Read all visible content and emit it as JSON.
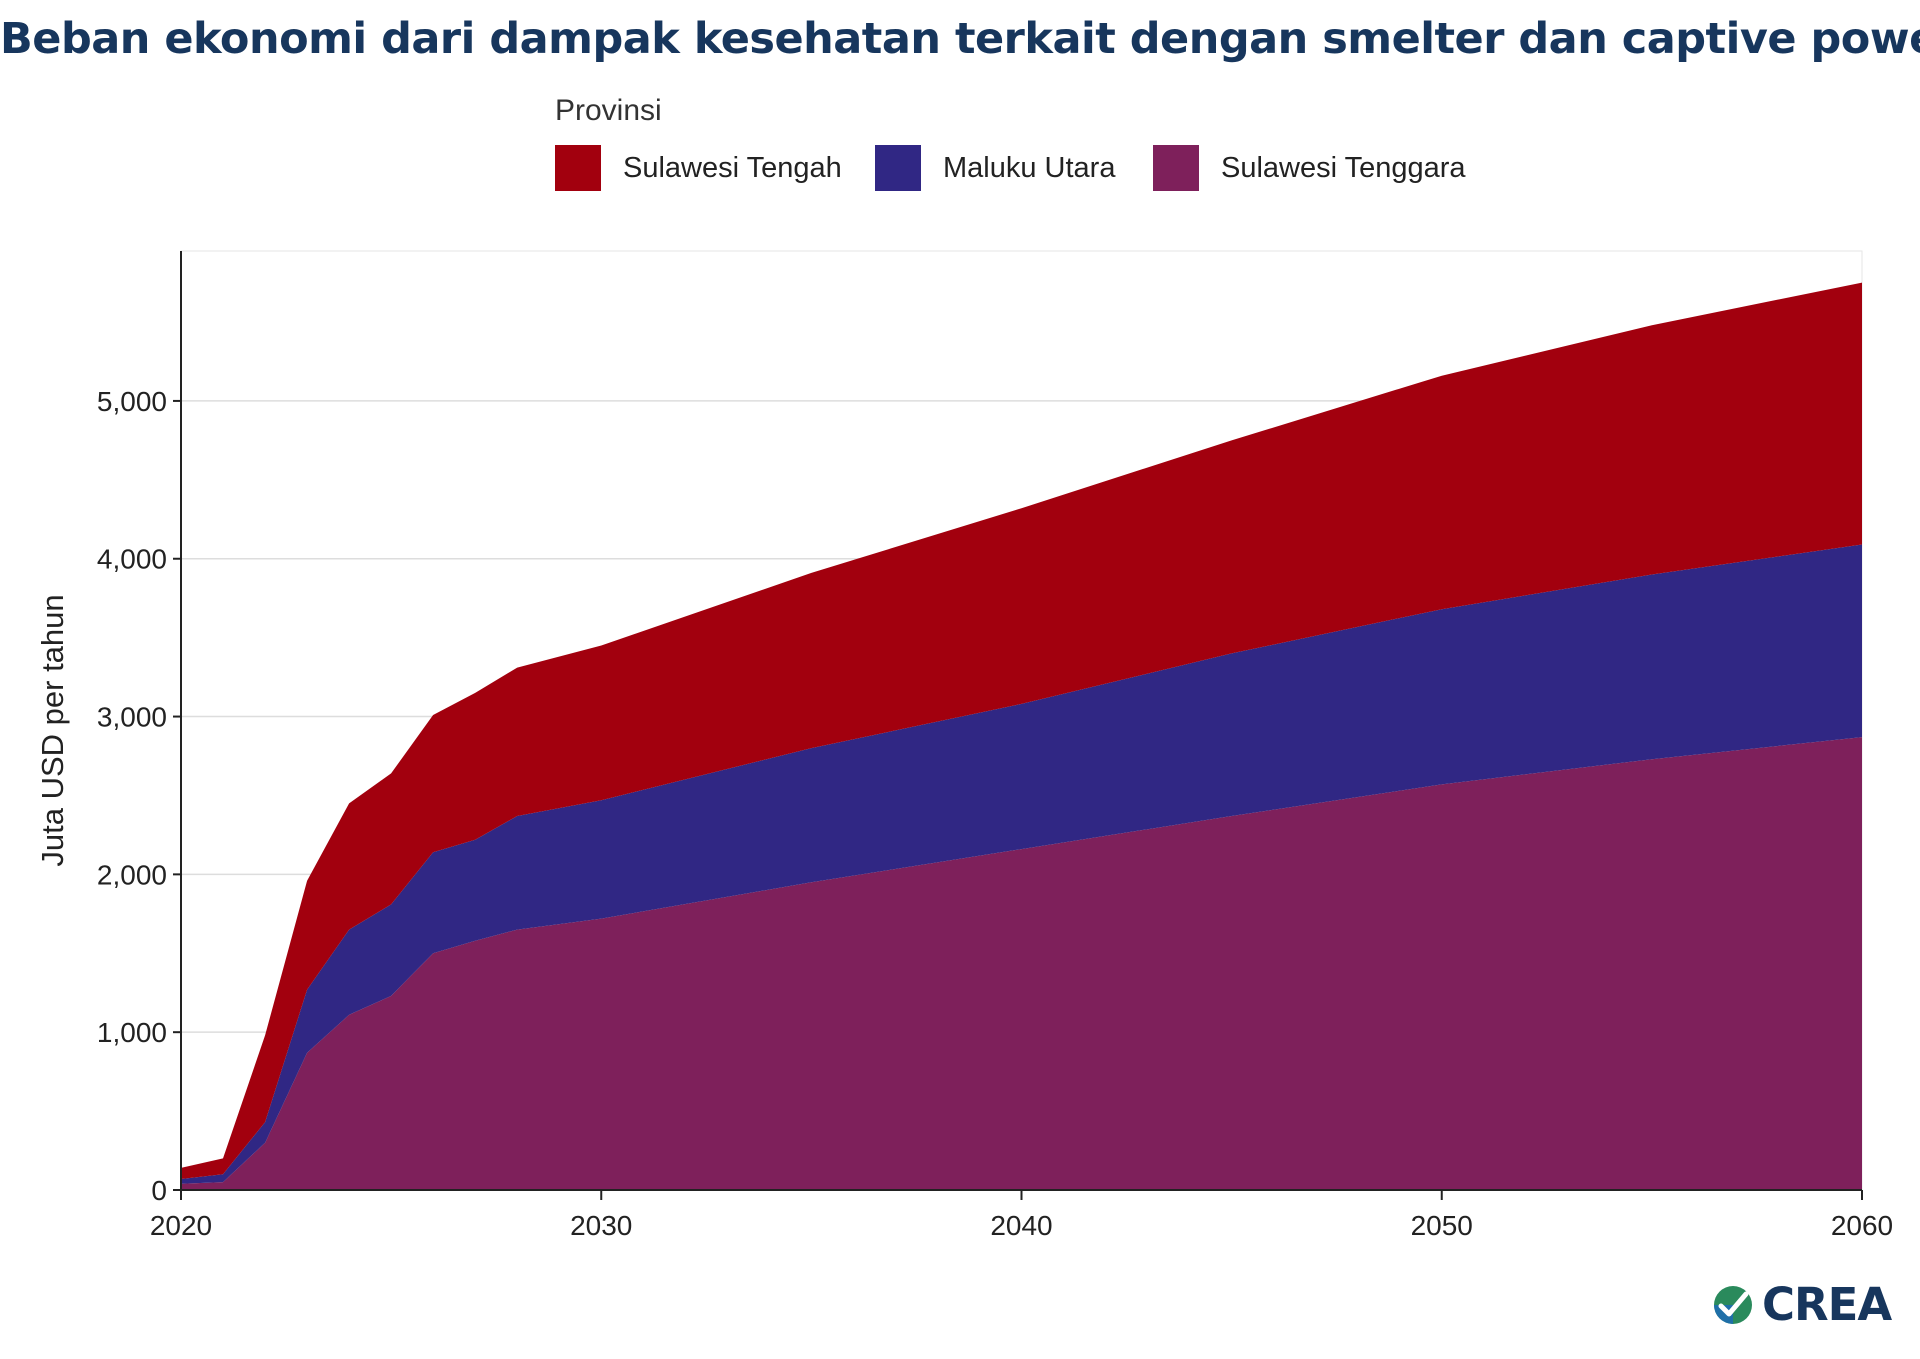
{
  "title": "Beban ekonomi dari dampak kesehatan terkait dengan smelter dan captive power",
  "legend": {
    "title": "Provinsi",
    "items": [
      {
        "label": "Sulawesi Tengah",
        "color": "#a2000e"
      },
      {
        "label": "Maluku Utara",
        "color": "#302784"
      },
      {
        "label": "Sulawesi Tenggara",
        "color": "#7e205b"
      }
    ]
  },
  "logo": {
    "text": "CREA"
  },
  "chart_data": {
    "type": "area",
    "stacked": true,
    "title": "Beban ekonomi dari dampak kesehatan terkait dengan smelter dan captive power",
    "xlabel": "",
    "ylabel": "Juta USD per tahun",
    "xlim": [
      2020,
      2060
    ],
    "ylim": [
      0,
      5950
    ],
    "x_ticks": [
      2020,
      2030,
      2040,
      2050,
      2060
    ],
    "x_tick_labels": [
      "2020",
      "2030",
      "2040",
      "2050",
      "2060"
    ],
    "y_ticks": [
      0,
      1000,
      2000,
      3000,
      4000,
      5000
    ],
    "y_tick_labels": [
      "0",
      "1,000",
      "2,000",
      "3,000",
      "4,000",
      "5,000"
    ],
    "grid": "horizontal",
    "legend_position": "top",
    "x": [
      2020,
      2021,
      2022,
      2023,
      2024,
      2025,
      2026,
      2027,
      2028,
      2030,
      2035,
      2040,
      2045,
      2050,
      2055,
      2060
    ],
    "series": [
      {
        "name": "Sulawesi Tenggara",
        "color": "#7e205b",
        "values": [
          40,
          50,
          300,
          870,
          1110,
          1230,
          1500,
          1580,
          1650,
          1720,
          1950,
          2160,
          2370,
          2570,
          2730,
          2870
        ]
      },
      {
        "name": "Maluku Utara",
        "color": "#302784",
        "values": [
          30,
          50,
          130,
          400,
          540,
          580,
          640,
          640,
          720,
          750,
          850,
          920,
          1030,
          1110,
          1170,
          1220
        ]
      },
      {
        "name": "Sulawesi Tengah",
        "color": "#a2000e",
        "values": [
          70,
          100,
          550,
          690,
          800,
          830,
          870,
          930,
          940,
          980,
          1110,
          1240,
          1350,
          1480,
          1580,
          1660
        ]
      }
    ]
  }
}
